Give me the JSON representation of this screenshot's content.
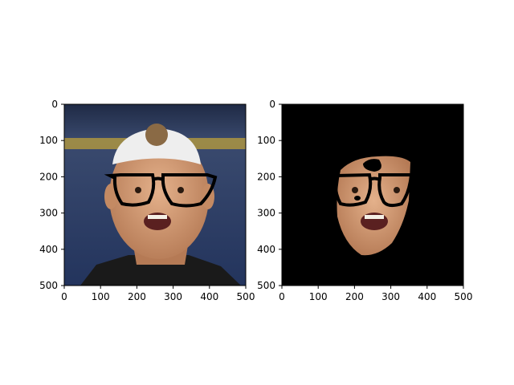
{
  "chart_data": [
    {
      "type": "image",
      "image_content": "photo of a man wearing a backwards white cap with thick black glasses overlaid on his eyes",
      "xlim": [
        0,
        500
      ],
      "ylim": [
        500,
        0
      ],
      "xticks": [
        0,
        100,
        200,
        300,
        400,
        500
      ],
      "yticks": [
        0,
        100,
        200,
        300,
        400,
        500
      ],
      "grid": false
    },
    {
      "type": "image",
      "image_content": "segmented face region with glasses overlay on black background",
      "xlim": [
        0,
        500
      ],
      "ylim": [
        500,
        0
      ],
      "xticks": [
        0,
        100,
        200,
        300,
        400,
        500
      ],
      "yticks": [
        0,
        100,
        200,
        300,
        400,
        500
      ],
      "grid": false
    }
  ],
  "colors": {
    "background_left": "#2d3f6d",
    "background_right": "#000000",
    "skin": "#d7a07a",
    "cap": "#eeeeee",
    "glasses": "#000000"
  }
}
